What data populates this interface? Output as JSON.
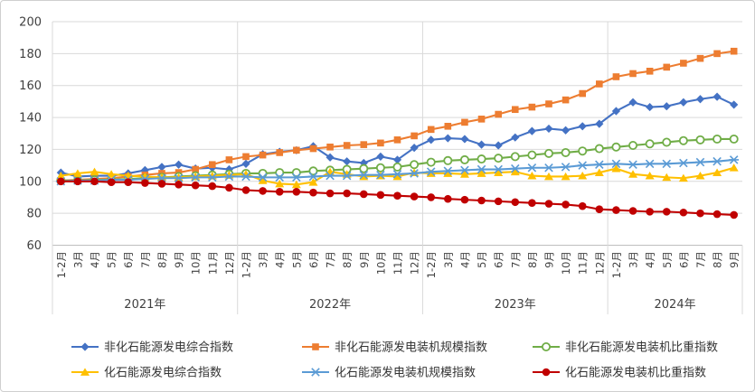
{
  "chart_data": {
    "type": "line",
    "title": "",
    "xlabel": "",
    "ylabel": "",
    "ylim": [
      60,
      200
    ],
    "yticks": [
      60,
      80,
      100,
      120,
      140,
      160,
      180,
      200
    ],
    "grid": "horizontal gridlines + vertical year separators",
    "legend_position": "bottom",
    "axis_text_color": "#595959",
    "gridline_color": "#d9d9d9",
    "year_groups": [
      {
        "label": "2021年",
        "months": 11
      },
      {
        "label": "2022年",
        "months": 11
      },
      {
        "label": "2023年",
        "months": 11
      },
      {
        "label": "2024年",
        "months": 8
      }
    ],
    "categories": [
      "1-2月",
      "3月",
      "4月",
      "5月",
      "6月",
      "7月",
      "8月",
      "9月",
      "10月",
      "11月",
      "12月",
      "1-2月",
      "3月",
      "4月",
      "5月",
      "6月",
      "7月",
      "8月",
      "9月",
      "10月",
      "11月",
      "12月",
      "1-2月",
      "3月",
      "4月",
      "5月",
      "6月",
      "7月",
      "8月",
      "9月",
      "10月",
      "11月",
      "12月",
      "1-2月",
      "3月",
      "4月",
      "5月",
      "6月",
      "7月",
      "8月",
      "9月"
    ],
    "series": [
      {
        "name": "非化石能源发电综合指数",
        "color": "#4472C4",
        "marker": "diamond",
        "values": [
          105.5,
          103,
          103.5,
          103.5,
          105,
          107,
          109,
          110.5,
          108,
          108.5,
          107.5,
          111,
          117,
          118.5,
          119.5,
          122,
          115,
          112.5,
          111.5,
          115.5,
          113.5,
          121,
          126,
          127,
          126.5,
          123,
          122.5,
          127.5,
          131.5,
          133,
          132,
          134.5,
          136,
          144,
          149.5,
          146.5,
          147,
          149.5,
          151.5,
          153,
          148
        ]
      },
      {
        "name": "非化石能源发电装机规模指数",
        "color": "#ED7D31",
        "marker": "square",
        "values": [
          100.5,
          101,
          101.5,
          102,
          103,
          104,
          105,
          105.5,
          107.5,
          110.5,
          113.5,
          115.5,
          116.5,
          118,
          119.5,
          120.5,
          121.5,
          122.5,
          123,
          124,
          126,
          128.5,
          132.5,
          134.5,
          137,
          139,
          142,
          145,
          146.5,
          148.5,
          151,
          155,
          161,
          165.5,
          167.5,
          169,
          171.5,
          174,
          177,
          180,
          181.5
        ]
      },
      {
        "name": "非化石能源发电装机比重指数",
        "color": "#70AD47",
        "marker": "circle-open",
        "values": [
          100.5,
          100.5,
          101,
          101,
          101.5,
          102,
          102.5,
          103,
          103.5,
          104,
          104.5,
          105,
          105,
          105.5,
          105.5,
          106.5,
          107,
          107.5,
          108,
          108.5,
          109,
          110.5,
          112,
          113,
          113.5,
          114,
          114.5,
          115.5,
          116.5,
          117.5,
          118,
          119,
          120.5,
          121.5,
          122.5,
          123.5,
          124.5,
          125.5,
          126,
          126.5,
          126.5
        ]
      },
      {
        "name": "化石能源发电综合指数",
        "color": "#FFC000",
        "marker": "triangle",
        "values": [
          103.5,
          105,
          106,
          104.5,
          103.5,
          103,
          102.5,
          102.5,
          103,
          103.5,
          104,
          104.5,
          100.5,
          98.5,
          98,
          99.5,
          106,
          104.5,
          103,
          103.5,
          103,
          105.5,
          105,
          105,
          104.5,
          105,
          105.5,
          106,
          103.5,
          103,
          103,
          103.5,
          105.5,
          108,
          104.5,
          103.5,
          102.5,
          102,
          103.5,
          105.5,
          108.5
        ]
      },
      {
        "name": "化石能源发电装机规模指数",
        "color": "#5B9BD5",
        "marker": "star",
        "values": [
          100,
          100.5,
          100.5,
          101,
          101,
          101.5,
          102,
          102,
          102.5,
          102.5,
          103,
          103,
          102.5,
          102.5,
          102.5,
          103,
          103.5,
          103.5,
          104,
          104,
          104.5,
          105,
          106,
          106.5,
          107,
          107.5,
          107.5,
          108,
          108.5,
          108.5,
          109,
          110,
          110.5,
          111,
          110.5,
          111,
          111,
          111.5,
          112,
          112.5,
          113.5
        ]
      },
      {
        "name": "化石能源发电装机比重指数",
        "color": "#C00000",
        "marker": "circle",
        "values": [
          100,
          100,
          100,
          99.5,
          99.5,
          99,
          98.5,
          98,
          97.5,
          97,
          96,
          94.5,
          94,
          93.5,
          93.5,
          93,
          92.5,
          92.5,
          92,
          91.5,
          91,
          90.5,
          90,
          89,
          88.5,
          88,
          87.5,
          87,
          86.5,
          86,
          85.5,
          84.5,
          82.5,
          82,
          81.5,
          81,
          81,
          80.5,
          80,
          79.5,
          79
        ]
      }
    ]
  }
}
